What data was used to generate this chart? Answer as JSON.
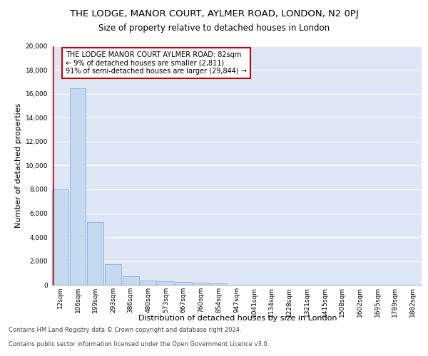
{
  "title_line1": "THE LODGE, MANOR COURT, AYLMER ROAD, LONDON, N2 0PJ",
  "title_line2": "Size of property relative to detached houses in London",
  "xlabel": "Distribution of detached houses by size in London",
  "ylabel": "Number of detached properties",
  "footnote1": "Contains HM Land Registry data © Crown copyright and database right 2024.",
  "footnote2": "Contains public sector information licensed under the Open Government Licence v3.0.",
  "bar_labels": [
    "12sqm",
    "106sqm",
    "199sqm",
    "293sqm",
    "386sqm",
    "480sqm",
    "573sqm",
    "667sqm",
    "760sqm",
    "854sqm",
    "947sqm",
    "1041sqm",
    "1134sqm",
    "1228sqm",
    "1321sqm",
    "1415sqm",
    "1508sqm",
    "1602sqm",
    "1695sqm",
    "1789sqm",
    "1882sqm"
  ],
  "bar_heights": [
    8000,
    16500,
    5250,
    1750,
    700,
    380,
    280,
    210,
    175,
    145,
    0,
    0,
    0,
    0,
    0,
    0,
    0,
    0,
    0,
    0,
    0
  ],
  "bar_color": "#c5d9f1",
  "bar_edge_color": "#7aa9d4",
  "highlight_line_color": "#cc0000",
  "annotation_text": "THE LODGE MANOR COURT AYLMER ROAD: 82sqm\n← 9% of detached houses are smaller (2,811)\n91% of semi-detached houses are larger (29,844) →",
  "annotation_box_color": "#ffffff",
  "annotation_border_color": "#cc0000",
  "ylim": [
    0,
    20000
  ],
  "yticks": [
    0,
    2000,
    4000,
    6000,
    8000,
    10000,
    12000,
    14000,
    16000,
    18000,
    20000
  ],
  "fig_bg_color": "#ffffff",
  "plot_bg_color": "#dce6f5",
  "grid_color": "#ffffff",
  "title_fontsize": 9.5,
  "subtitle_fontsize": 8.5,
  "axis_label_fontsize": 8,
  "tick_fontsize": 6.5,
  "annotation_fontsize": 7,
  "footnote_fontsize": 6
}
